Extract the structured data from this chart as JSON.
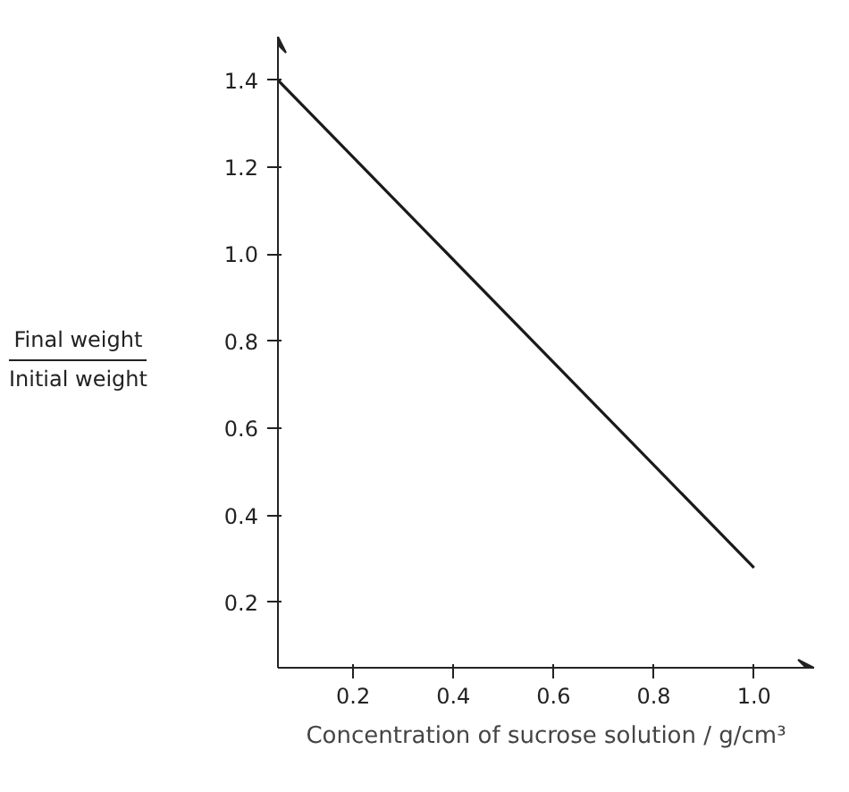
{
  "chart_data": {
    "type": "line",
    "xlabel": "Concentration of sucrose solution / g/cm³",
    "ylabel": "Final weight\nInitial weight",
    "x": [
      0.05,
      1.0
    ],
    "series": [
      {
        "color": "#1a1a1a",
        "values": [
          1.4,
          0.28
        ]
      }
    ],
    "xlim": [
      0.05,
      1.12
    ],
    "ylim": [
      0.05,
      1.5
    ],
    "xticks": [
      0.2,
      0.4,
      0.6,
      0.8,
      {
        "value": 1.0,
        "label": "1.0"
      }
    ],
    "yticks": [
      0.2,
      0.4,
      0.6,
      0.8,
      {
        "value": 1.0,
        "label": "1.0"
      },
      1.2,
      1.4
    ],
    "grid": false,
    "marker": "none",
    "line_style": "solid"
  }
}
